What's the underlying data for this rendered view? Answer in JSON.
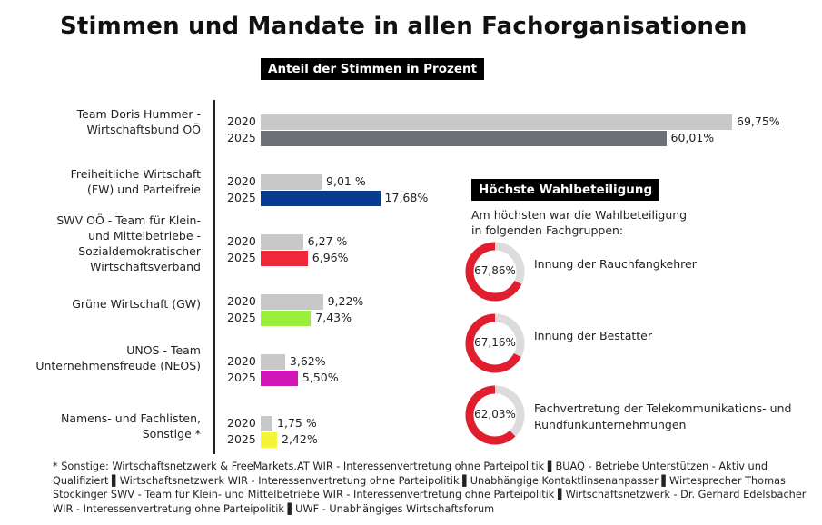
{
  "title": "Stimmen und Mandate in allen Fachorganisationen",
  "share_header": "Anteil der Stimmen in Prozent",
  "chart_data": {
    "type": "bar",
    "orientation": "horizontal",
    "title": "Anteil der Stimmen in Prozent",
    "categories": [
      [
        "Team Doris Hummer -",
        "Wirtschaftsbund OÖ"
      ],
      [
        "Freiheitliche Wirtschaft",
        "(FW) und Parteifreie"
      ],
      [
        "SWV OÖ - Team für Klein-",
        "und Mittelbetriebe -",
        "Sozialdemokratischer",
        "Wirtschaftsverband"
      ],
      [
        "Grüne Wirtschaft (GW)"
      ],
      [
        "UNOS - Team",
        "Unternehmensfreude (NEOS)"
      ],
      [
        "Namens- und Fachlisten,",
        "Sonstige *"
      ]
    ],
    "series": [
      {
        "name": "2020",
        "values": [
          69.75,
          9.01,
          6.27,
          9.22,
          3.62,
          1.75
        ],
        "labels": [
          "69,75%",
          "9,01 %",
          "6,27 %",
          "9,22%",
          "3,62%",
          "1,75 %"
        ]
      },
      {
        "name": "2025",
        "values": [
          60.01,
          17.68,
          6.96,
          7.43,
          5.5,
          2.42
        ],
        "labels": [
          "60,01%",
          "17,68%",
          "6,96%",
          "7,43%",
          "5,50%",
          "2,42%"
        ]
      }
    ],
    "colors": {
      "2020": "#c8c8c8",
      "2025": [
        "#6f6f77",
        "#0a3a8c",
        "#f0283a",
        "#99f03a",
        "#d016b4",
        "#f4f43a"
      ]
    },
    "xlim": [
      0,
      69.75
    ]
  },
  "turnout": {
    "title": "Höchste Wahlbeteiligung",
    "intro": [
      "Am höchsten war die Wahlbeteiligung",
      "in folgenden Fachgruppen:"
    ],
    "items": [
      {
        "value": 67.86,
        "label": "67,86%",
        "name": [
          "Innung der Rauchfangkehrer"
        ]
      },
      {
        "value": 67.16,
        "label": "67,16%",
        "name": [
          "Innung der Bestatter"
        ]
      },
      {
        "value": 62.03,
        "label": "62,03%",
        "name": [
          "Fachvertretung der Telekommunikations- und",
          "Rundfunkunternehmungen"
        ]
      }
    ],
    "ring_color": "#e01e2e",
    "track_color": "#dcdcdc"
  },
  "footnote": "* Sonstige: Wirtschaftsnetzwerk & FreeMarkets.AT WIR - Interessenvertretung ohne Parteipolitik ▌BUAQ - Betriebe Unterstützen - Aktiv und Qualifiziert ▌Wirtschaftsnetzwerk WIR - Interessenvertretung ohne Parteipolitik ▌Unabhängige Kontaktlinsenanpasser ▌Wirtesprecher Thomas Stockinger SWV - Team für Klein- und Mittelbetriebe WIR - Interessenvertretung ohne Parteipolitik ▌Wirtschaftsnetzwerk - Dr. Gerhard Edelsbacher WIR - Interessenvertretung ohne Parteipolitik ▌UWF - Unabhängiges Wirtschaftsforum"
}
